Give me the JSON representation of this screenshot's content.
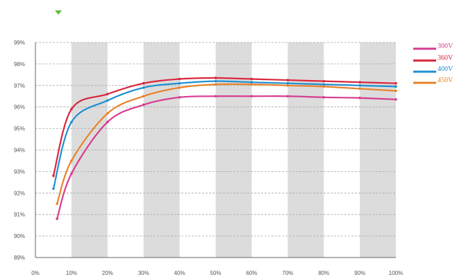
{
  "chart_data": {
    "type": "line",
    "title": "",
    "xlabel": "",
    "ylabel": "",
    "xlim": [
      0,
      100
    ],
    "ylim": [
      89,
      99
    ],
    "grid": true,
    "legend_position": "right",
    "x_ticks": [
      0,
      10,
      20,
      30,
      40,
      50,
      60,
      70,
      80,
      90,
      100
    ],
    "x_tick_labels": [
      "0%",
      "10%",
      "20%",
      "30%",
      "40%",
      "50%",
      "60%",
      "70%",
      "80%",
      "90%",
      "100%"
    ],
    "y_ticks": [
      89,
      90,
      91,
      92,
      93,
      94,
      95,
      96,
      97,
      98,
      99
    ],
    "y_tick_labels": [
      "89%",
      "90%",
      "91%",
      "92%",
      "93%",
      "94%",
      "95%",
      "96%",
      "97%",
      "98%",
      "99%"
    ],
    "shaded_bands": [
      [
        10,
        20
      ],
      [
        30,
        40
      ],
      [
        50,
        60
      ],
      [
        70,
        80
      ],
      [
        90,
        100
      ]
    ],
    "series": [
      {
        "name": "300V",
        "color": "#d63c8f",
        "x": [
          6,
          10,
          20,
          30,
          40,
          50,
          60,
          70,
          80,
          90,
          100
        ],
        "y": [
          90.8,
          92.9,
          95.3,
          96.1,
          96.45,
          96.5,
          96.5,
          96.5,
          96.45,
          96.42,
          96.35
        ]
      },
      {
        "name": "360V",
        "color": "#d9263e",
        "x": [
          5,
          10,
          20,
          30,
          40,
          50,
          60,
          70,
          80,
          90,
          100
        ],
        "y": [
          92.8,
          95.9,
          96.6,
          97.1,
          97.3,
          97.35,
          97.3,
          97.25,
          97.2,
          97.15,
          97.1
        ]
      },
      {
        "name": "400V",
        "color": "#1f8fd1",
        "x": [
          5,
          10,
          20,
          30,
          40,
          50,
          60,
          70,
          80,
          90,
          100
        ],
        "y": [
          92.2,
          95.3,
          96.3,
          96.9,
          97.1,
          97.2,
          97.15,
          97.1,
          97.05,
          97.0,
          96.95
        ]
      },
      {
        "name": "450V",
        "color": "#e8822a",
        "x": [
          6,
          10,
          20,
          30,
          40,
          50,
          60,
          70,
          80,
          90,
          100
        ],
        "y": [
          91.5,
          93.5,
          95.7,
          96.5,
          96.9,
          97.05,
          97.05,
          97.0,
          96.95,
          96.85,
          96.75
        ]
      }
    ]
  }
}
